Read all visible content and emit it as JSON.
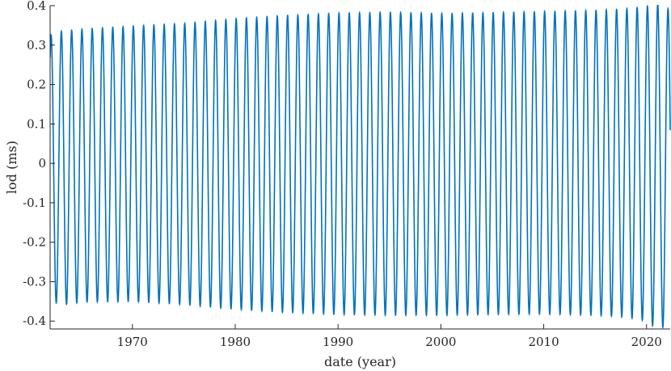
{
  "chart_data": {
    "type": "line",
    "title": "",
    "xlabel": "date (year)",
    "ylabel": "lod (ms)",
    "xlim": [
      1962,
      2022.3
    ],
    "ylim": [
      -0.42,
      0.4
    ],
    "xticks": [
      1970,
      1980,
      1990,
      2000,
      2010,
      2020
    ],
    "yticks": [
      -0.4,
      -0.3,
      -0.2,
      -0.1,
      0,
      0.1,
      0.2,
      0.3,
      0.4
    ],
    "grid": false,
    "legend": "none",
    "series": [
      {
        "color": "#0072BD",
        "period_years": 0.9999,
        "start_value": 0.27,
        "end_value": 0.12,
        "amplitude_envelope": {
          "x": [
            1962,
            1963,
            1965,
            1970,
            1975,
            1980,
            1985,
            1990,
            1995,
            2000,
            2005,
            2010,
            2015,
            2018,
            2020,
            2021,
            2022.3
          ],
          "upper": [
            0.325,
            0.335,
            0.34,
            0.348,
            0.355,
            0.367,
            0.375,
            0.381,
            0.383,
            0.38,
            0.382,
            0.385,
            0.388,
            0.392,
            0.398,
            0.405,
            0.39
          ],
          "lower": [
            -0.345,
            -0.36,
            -0.352,
            -0.35,
            -0.358,
            -0.37,
            -0.378,
            -0.383,
            -0.385,
            -0.385,
            -0.383,
            -0.382,
            -0.385,
            -0.39,
            -0.4,
            -0.42,
            -0.41
          ]
        }
      }
    ]
  },
  "axes": {
    "xlabel": "date (year)",
    "ylabel": "lod (ms)",
    "xtick_labels": [
      "1970",
      "1980",
      "1990",
      "2000",
      "2010",
      "2020"
    ],
    "ytick_labels": [
      "-0.4",
      "-0.3",
      "-0.2",
      "-0.1",
      "0",
      "0.1",
      "0.2",
      "0.3",
      "0.4"
    ]
  }
}
